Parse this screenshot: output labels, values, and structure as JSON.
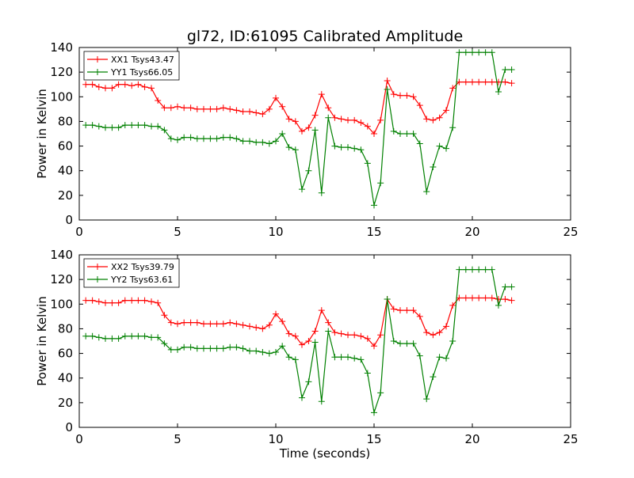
{
  "title": "gl72, ID:61095 Calibrated Amplitude",
  "xlabel": "Time (seconds)",
  "ylabel": "Power in Kelvin",
  "chart_data": [
    {
      "type": "line",
      "title": "gl72, ID:61095 Calibrated Amplitude",
      "xlabel": "",
      "ylabel": "Power in Kelvin",
      "xlim": [
        0,
        25
      ],
      "ylim": [
        0,
        140
      ],
      "xticks": [
        "0",
        "5",
        "10",
        "15",
        "20",
        "25"
      ],
      "yticks": [
        "0",
        "20",
        "40",
        "60",
        "80",
        "100",
        "120",
        "140"
      ],
      "grid": false,
      "legend": "top-left",
      "x": [
        0.33,
        0.67,
        1.0,
        1.33,
        1.67,
        2.0,
        2.33,
        2.67,
        3.0,
        3.33,
        3.67,
        4.0,
        4.33,
        4.67,
        5.0,
        5.33,
        5.67,
        6.0,
        6.33,
        6.67,
        7.0,
        7.33,
        7.67,
        8.0,
        8.33,
        8.67,
        9.0,
        9.33,
        9.67,
        10.0,
        10.33,
        10.67,
        11.0,
        11.33,
        11.67,
        12.0,
        12.33,
        12.67,
        13.0,
        13.33,
        13.67,
        14.0,
        14.33,
        14.67,
        15.0,
        15.33,
        15.67,
        16.0,
        16.33,
        16.67,
        17.0,
        17.33,
        17.67,
        18.0,
        18.33,
        18.67,
        19.0,
        19.33,
        19.67,
        20.0
      ],
      "series": [
        {
          "name": "XX1 Tsys43.47",
          "color": "#ff0000",
          "values": [
            110,
            110,
            108,
            107,
            107,
            110,
            110,
            109,
            110,
            108,
            107,
            97,
            91,
            91,
            92,
            91,
            91,
            90,
            90,
            90,
            90,
            91,
            90,
            89,
            88,
            88,
            87,
            86,
            90,
            99,
            92,
            82,
            80,
            72,
            75,
            85,
            102,
            91,
            83,
            82,
            81,
            81,
            79,
            76,
            70,
            81,
            113,
            102,
            101,
            101,
            100,
            93,
            82,
            81,
            83,
            89,
            107,
            112,
            112,
            112
          ]
        },
        {
          "name": "YY1 Tsys66.05",
          "color": "#008000",
          "values": [
            77,
            77,
            76,
            75,
            75,
            75,
            77,
            77,
            77,
            77,
            76,
            76,
            73,
            66,
            65,
            67,
            67,
            66,
            66,
            66,
            66,
            67,
            67,
            66,
            64,
            64,
            63,
            63,
            62,
            64,
            70,
            59,
            57,
            25,
            40,
            73,
            22,
            83,
            60,
            59,
            59,
            58,
            57,
            46,
            12,
            30,
            106,
            72,
            70,
            70,
            70,
            62,
            23,
            43,
            60,
            58,
            75,
            136,
            136,
            136
          ]
        }
      ]
    },
    {
      "type": "line",
      "title": "",
      "xlabel": "Time (seconds)",
      "ylabel": "Power in Kelvin",
      "xlim": [
        0,
        25
      ],
      "ylim": [
        0,
        140
      ],
      "xticks": [
        "0",
        "5",
        "10",
        "15",
        "20",
        "25"
      ],
      "yticks": [
        "0",
        "20",
        "40",
        "60",
        "80",
        "100",
        "120",
        "140"
      ],
      "grid": false,
      "legend": "top-left",
      "x": [
        0.33,
        0.67,
        1.0,
        1.33,
        1.67,
        2.0,
        2.33,
        2.67,
        3.0,
        3.33,
        3.67,
        4.0,
        4.33,
        4.67,
        5.0,
        5.33,
        5.67,
        6.0,
        6.33,
        6.67,
        7.0,
        7.33,
        7.67,
        8.0,
        8.33,
        8.67,
        9.0,
        9.33,
        9.67,
        10.0,
        10.33,
        10.67,
        11.0,
        11.33,
        11.67,
        12.0,
        12.33,
        12.67,
        13.0,
        13.33,
        13.67,
        14.0,
        14.33,
        14.67,
        15.0,
        15.33,
        15.67,
        16.0,
        16.33,
        16.67,
        17.0,
        17.33,
        17.67,
        18.0,
        18.33,
        18.67,
        19.0,
        19.33,
        19.67,
        20.0
      ],
      "series": [
        {
          "name": "XX2 Tsys39.79",
          "color": "#ff0000",
          "values": [
            103,
            103,
            102,
            101,
            101,
            101,
            103,
            103,
            103,
            103,
            102,
            101,
            91,
            85,
            84,
            85,
            85,
            85,
            84,
            84,
            84,
            84,
            85,
            84,
            83,
            82,
            81,
            80,
            83,
            92,
            86,
            76,
            74,
            67,
            70,
            78,
            95,
            85,
            77,
            76,
            75,
            75,
            74,
            72,
            66,
            75,
            104,
            96,
            95,
            95,
            95,
            90,
            77,
            75,
            77,
            82,
            99,
            105,
            105,
            105
          ]
        },
        {
          "name": "YY2 Tsys63.61",
          "color": "#008000",
          "values": [
            74,
            74,
            73,
            72,
            72,
            72,
            74,
            74,
            74,
            74,
            73,
            73,
            68,
            63,
            63,
            65,
            65,
            64,
            64,
            64,
            64,
            64,
            65,
            65,
            64,
            62,
            62,
            61,
            60,
            61,
            66,
            57,
            55,
            24,
            37,
            69,
            21,
            78,
            57,
            57,
            57,
            56,
            55,
            44,
            12,
            28,
            104,
            70,
            68,
            68,
            68,
            58,
            23,
            41,
            57,
            56,
            70,
            128,
            128,
            128
          ]
        }
      ]
    }
  ],
  "series_ext": [
    {
      "x_tail": [
        20.33,
        20.67,
        21.0,
        21.33,
        21.67,
        22.0
      ],
      "xx1": [
        112,
        112,
        112,
        112,
        112,
        111
      ],
      "yy1": [
        136,
        136,
        136,
        104,
        122,
        122
      ]
    },
    {
      "x_tail": [
        20.33,
        20.67,
        21.0,
        21.33,
        21.67,
        22.0
      ],
      "xx2": [
        105,
        105,
        105,
        104,
        104,
        103
      ],
      "yy2": [
        128,
        128,
        128,
        99,
        114,
        114
      ]
    }
  ]
}
